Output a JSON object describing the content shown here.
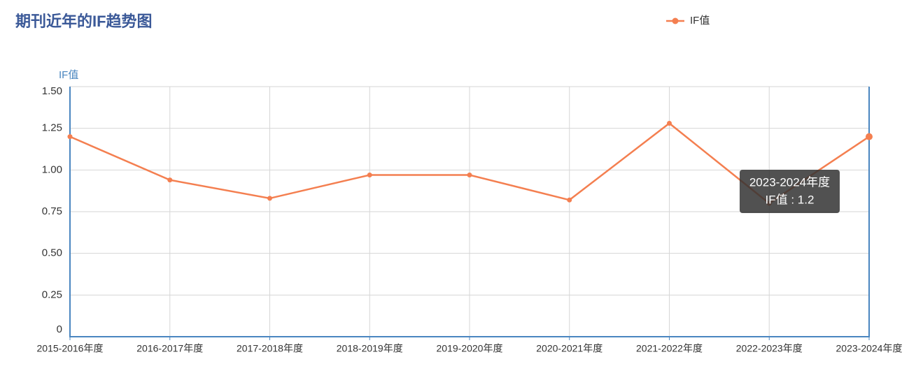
{
  "chart_data": {
    "type": "line",
    "title": "期刊近年的IF趋势图",
    "y_label": "IF值",
    "categories": [
      "2015-2016年度",
      "2016-2017年度",
      "2017-2018年度",
      "2018-2019年度",
      "2019-2020年度",
      "2020-2021年度",
      "2021-2022年度",
      "2022-2023年度",
      "2023-2024年度"
    ],
    "series": [
      {
        "name": "IF值",
        "color": "#f47f50",
        "values": [
          1.2,
          0.94,
          0.83,
          0.97,
          0.97,
          0.82,
          1.28,
          0.8,
          1.2
        ]
      }
    ],
    "ylim": [
      0,
      1.5
    ],
    "yticks": [
      0,
      0.25,
      {
        "value": 0.5,
        "label": "0.50"
      },
      0.75,
      {
        "value": 1,
        "label": "1.00"
      },
      1.25,
      {
        "value": 1.5,
        "label": "1.50"
      }
    ],
    "grid": true,
    "legend": "top",
    "tooltip": [
      "2023-2024年度",
      "IF值 : 1.2"
    ]
  }
}
